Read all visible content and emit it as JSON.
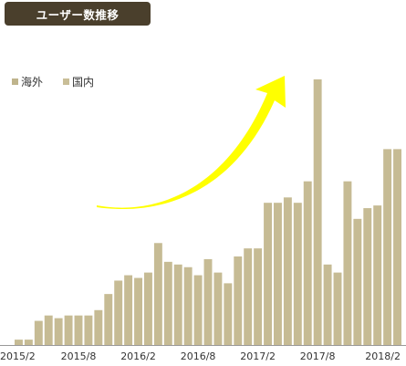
{
  "title": "ユーザー数推移",
  "colors": {
    "title_bg": "#4a3f2c",
    "bar": "#c6bb94",
    "legend_overseas": "#bfb48c",
    "legend_domestic": "#c9be97",
    "arrow": "#ffff00",
    "axis": "#999999"
  },
  "legend": {
    "overseas": "海外",
    "domestic": "国内"
  },
  "chart_data": {
    "type": "bar",
    "title": "ユーザー数推移",
    "legend_position": "top-left",
    "grid": false,
    "ylim": [
      0,
      100
    ],
    "x_tick_labels": [
      "2015/2",
      "2015/8",
      "2016/2",
      "2016/8",
      "2017/2",
      "2017/8",
      "2018/2"
    ],
    "x_tick_indices": [
      0,
      6,
      12,
      18,
      24,
      30,
      36
    ],
    "series": [
      {
        "name": "",
        "values": [
          2,
          2,
          9,
          11,
          10,
          11,
          11,
          11,
          13,
          19,
          24,
          26,
          25,
          27,
          38,
          31,
          30,
          29,
          26,
          32,
          27,
          23,
          33,
          36,
          36,
          53,
          53,
          55,
          53,
          61,
          99,
          30,
          27,
          61,
          47,
          51,
          52,
          73,
          73
        ]
      }
    ],
    "annotation": "upward-curved-arrow"
  }
}
